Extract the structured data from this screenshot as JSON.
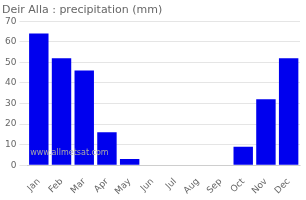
{
  "chart_data": {
    "type": "bar",
    "title": "Deir Alla : precipitation (mm)",
    "categories": [
      "Jan",
      "Feb",
      "Mar",
      "Apr",
      "May",
      "Jun",
      "Jul",
      "Aug",
      "Sep",
      "Oct",
      "Nov",
      "Dec"
    ],
    "values": [
      64,
      52,
      46,
      16,
      3,
      0,
      0,
      0,
      0,
      9,
      32,
      52
    ],
    "color": "#0000ee",
    "ylim": [
      0,
      70
    ],
    "yticks": [
      0,
      10,
      20,
      30,
      40,
      50,
      60,
      70
    ],
    "grid": true,
    "annotations": [
      "www.allmetsat.com"
    ]
  }
}
